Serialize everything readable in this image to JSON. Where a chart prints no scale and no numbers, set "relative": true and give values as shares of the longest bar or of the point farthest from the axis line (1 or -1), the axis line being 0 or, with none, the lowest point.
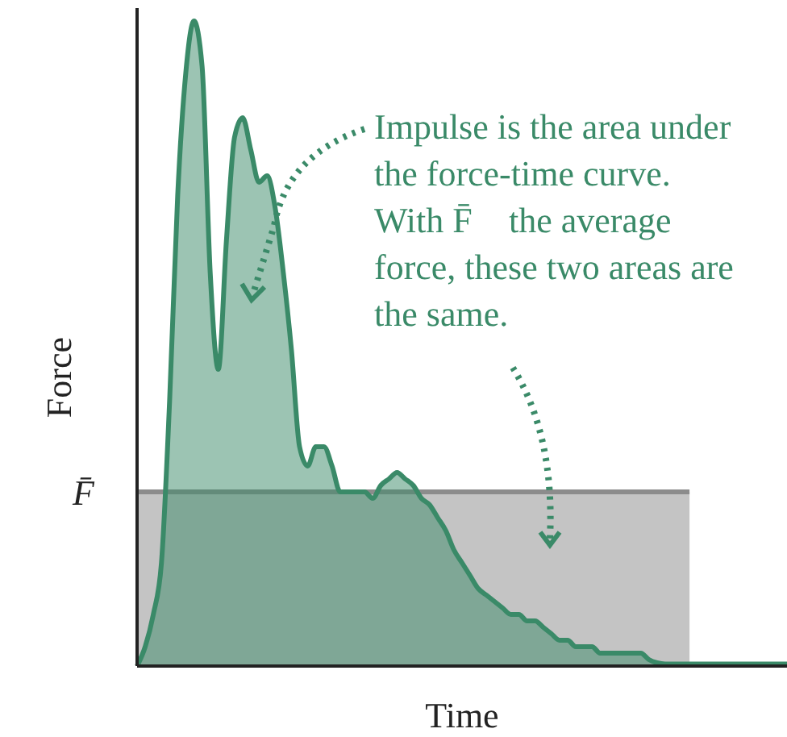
{
  "chart_data": {
    "type": "area",
    "relative": true,
    "xlabel": "Time",
    "ylabel": "Force",
    "annotations": [
      "Impulse is the area under the force-time curve. With F̄⃗ the average force, these two areas are the same."
    ],
    "categories": [
      null,
      null,
      null,
      null,
      null,
      null,
      null,
      null,
      null,
      null,
      null,
      null,
      null,
      null,
      null,
      null,
      null,
      null,
      null,
      null,
      null,
      null,
      null,
      null,
      null,
      null,
      null,
      null,
      null,
      null,
      null,
      null,
      null,
      null,
      null,
      null,
      null,
      null,
      null,
      null,
      null,
      null,
      null,
      null,
      null,
      null,
      null,
      null,
      null,
      null,
      null,
      null,
      null,
      null,
      null,
      null,
      null,
      null,
      null,
      null,
      null,
      null,
      null,
      null,
      null,
      null,
      null,
      null,
      null,
      null,
      null,
      null,
      null,
      null,
      null,
      null,
      null,
      null,
      null,
      null,
      null
    ],
    "series": [
      {
        "name": "F̄⃗",
        "color": "#c4c4c4",
        "values": [
          0.27,
          0.27,
          0.27,
          0.27,
          0.27,
          0.27,
          0.27,
          0.27,
          0.27,
          0.27,
          0.27,
          0.27,
          0.27,
          0.27,
          0.27,
          0.27,
          0.27,
          0.27,
          0.27,
          0.27,
          0.27,
          0.27,
          0.27,
          0.27,
          0.27,
          0.27,
          0.27,
          0.27,
          0.27,
          0.27,
          0.27,
          0.27,
          0.27,
          0.27,
          0.27,
          0.27,
          0.27,
          0.27,
          0.27,
          0.27,
          0.27,
          0.27,
          0.27,
          0.27,
          0.27,
          0.27,
          0.27,
          0.27,
          0.27,
          0.27,
          0.27,
          0.27,
          0.27,
          0.27,
          0.27,
          0.27,
          0.27,
          0.27,
          0.27,
          0.27,
          0.27,
          0.27,
          0.27,
          0.27,
          0.27,
          0.27,
          0.27,
          0.27,
          0.27,
          null,
          null,
          null,
          null,
          null,
          null,
          null,
          null,
          null,
          null,
          null,
          null
        ]
      },
      {
        "color": "#3a8a68",
        "values": [
          0,
          0.03,
          0.08,
          0.16,
          0.41,
          0.73,
          0.92,
          1,
          0.93,
          0.61,
          0.46,
          0.66,
          0.82,
          0.85,
          0.8,
          0.75,
          0.76,
          0.71,
          0.61,
          0.49,
          0.34,
          0.31,
          0.34,
          0.34,
          0.31,
          0.27,
          0.27,
          0.27,
          0.27,
          0.26,
          0.28,
          0.29,
          0.3,
          0.29,
          0.28,
          0.26,
          0.25,
          0.23,
          0.21,
          0.18,
          0.16,
          0.14,
          0.12,
          0.11,
          0.1,
          0.09,
          0.08,
          0.08,
          0.07,
          0.07,
          0.06,
          0.05,
          0.04,
          0.04,
          0.03,
          0.03,
          0.03,
          0.02,
          0.02,
          0.02,
          0.02,
          0.02,
          0.02,
          0.01,
          0.005,
          0.003,
          0.003,
          0.003,
          0.003,
          0.003,
          0.003,
          0.003,
          0.003,
          0.003,
          0.003,
          0.003,
          0.003,
          0.003,
          0.003,
          0.003,
          0.003
        ]
      }
    ]
  }
}
